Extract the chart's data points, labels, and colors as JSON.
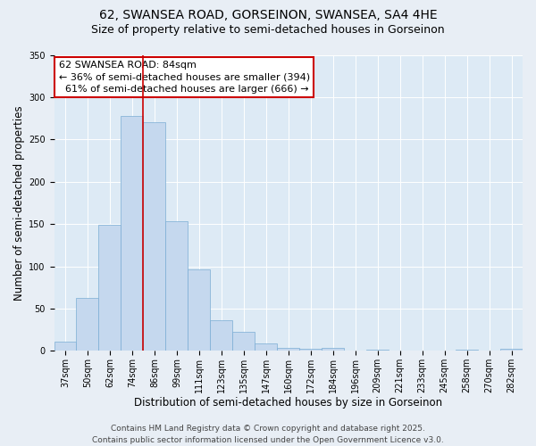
{
  "title": "62, SWANSEA ROAD, GORSEINON, SWANSEA, SA4 4HE",
  "subtitle": "Size of property relative to semi-detached houses in Gorseinon",
  "xlabel": "Distribution of semi-detached houses by size in Gorseinon",
  "ylabel": "Number of semi-detached properties",
  "bin_labels": [
    "37sqm",
    "50sqm",
    "62sqm",
    "74sqm",
    "86sqm",
    "99sqm",
    "111sqm",
    "123sqm",
    "135sqm",
    "147sqm",
    "160sqm",
    "172sqm",
    "184sqm",
    "196sqm",
    "209sqm",
    "221sqm",
    "233sqm",
    "245sqm",
    "258sqm",
    "270sqm",
    "282sqm"
  ],
  "bin_values": [
    11,
    63,
    149,
    278,
    270,
    153,
    96,
    36,
    22,
    9,
    4,
    2,
    3,
    0,
    1,
    0,
    0,
    0,
    1,
    0,
    2
  ],
  "bar_color": "#c5d8ee",
  "bar_edge_color": "#7aadd4",
  "bar_width": 1.0,
  "property_label": "62 SWANSEA ROAD: 84sqm",
  "pct_smaller": 36,
  "count_smaller": 394,
  "pct_larger": 61,
  "count_larger": 666,
  "vline_x_index": 4,
  "vline_color": "#cc0000",
  "ylim": [
    0,
    350
  ],
  "yticks": [
    0,
    50,
    100,
    150,
    200,
    250,
    300,
    350
  ],
  "bg_color": "#e8eef5",
  "plot_bg_color": "#ddeaf5",
  "annotation_box_color": "#cc0000",
  "footer_line1": "Contains HM Land Registry data © Crown copyright and database right 2025.",
  "footer_line2": "Contains public sector information licensed under the Open Government Licence v3.0.",
  "title_fontsize": 10,
  "subtitle_fontsize": 9,
  "axis_label_fontsize": 8.5,
  "tick_fontsize": 7,
  "annotation_fontsize": 8,
  "footer_fontsize": 6.5
}
